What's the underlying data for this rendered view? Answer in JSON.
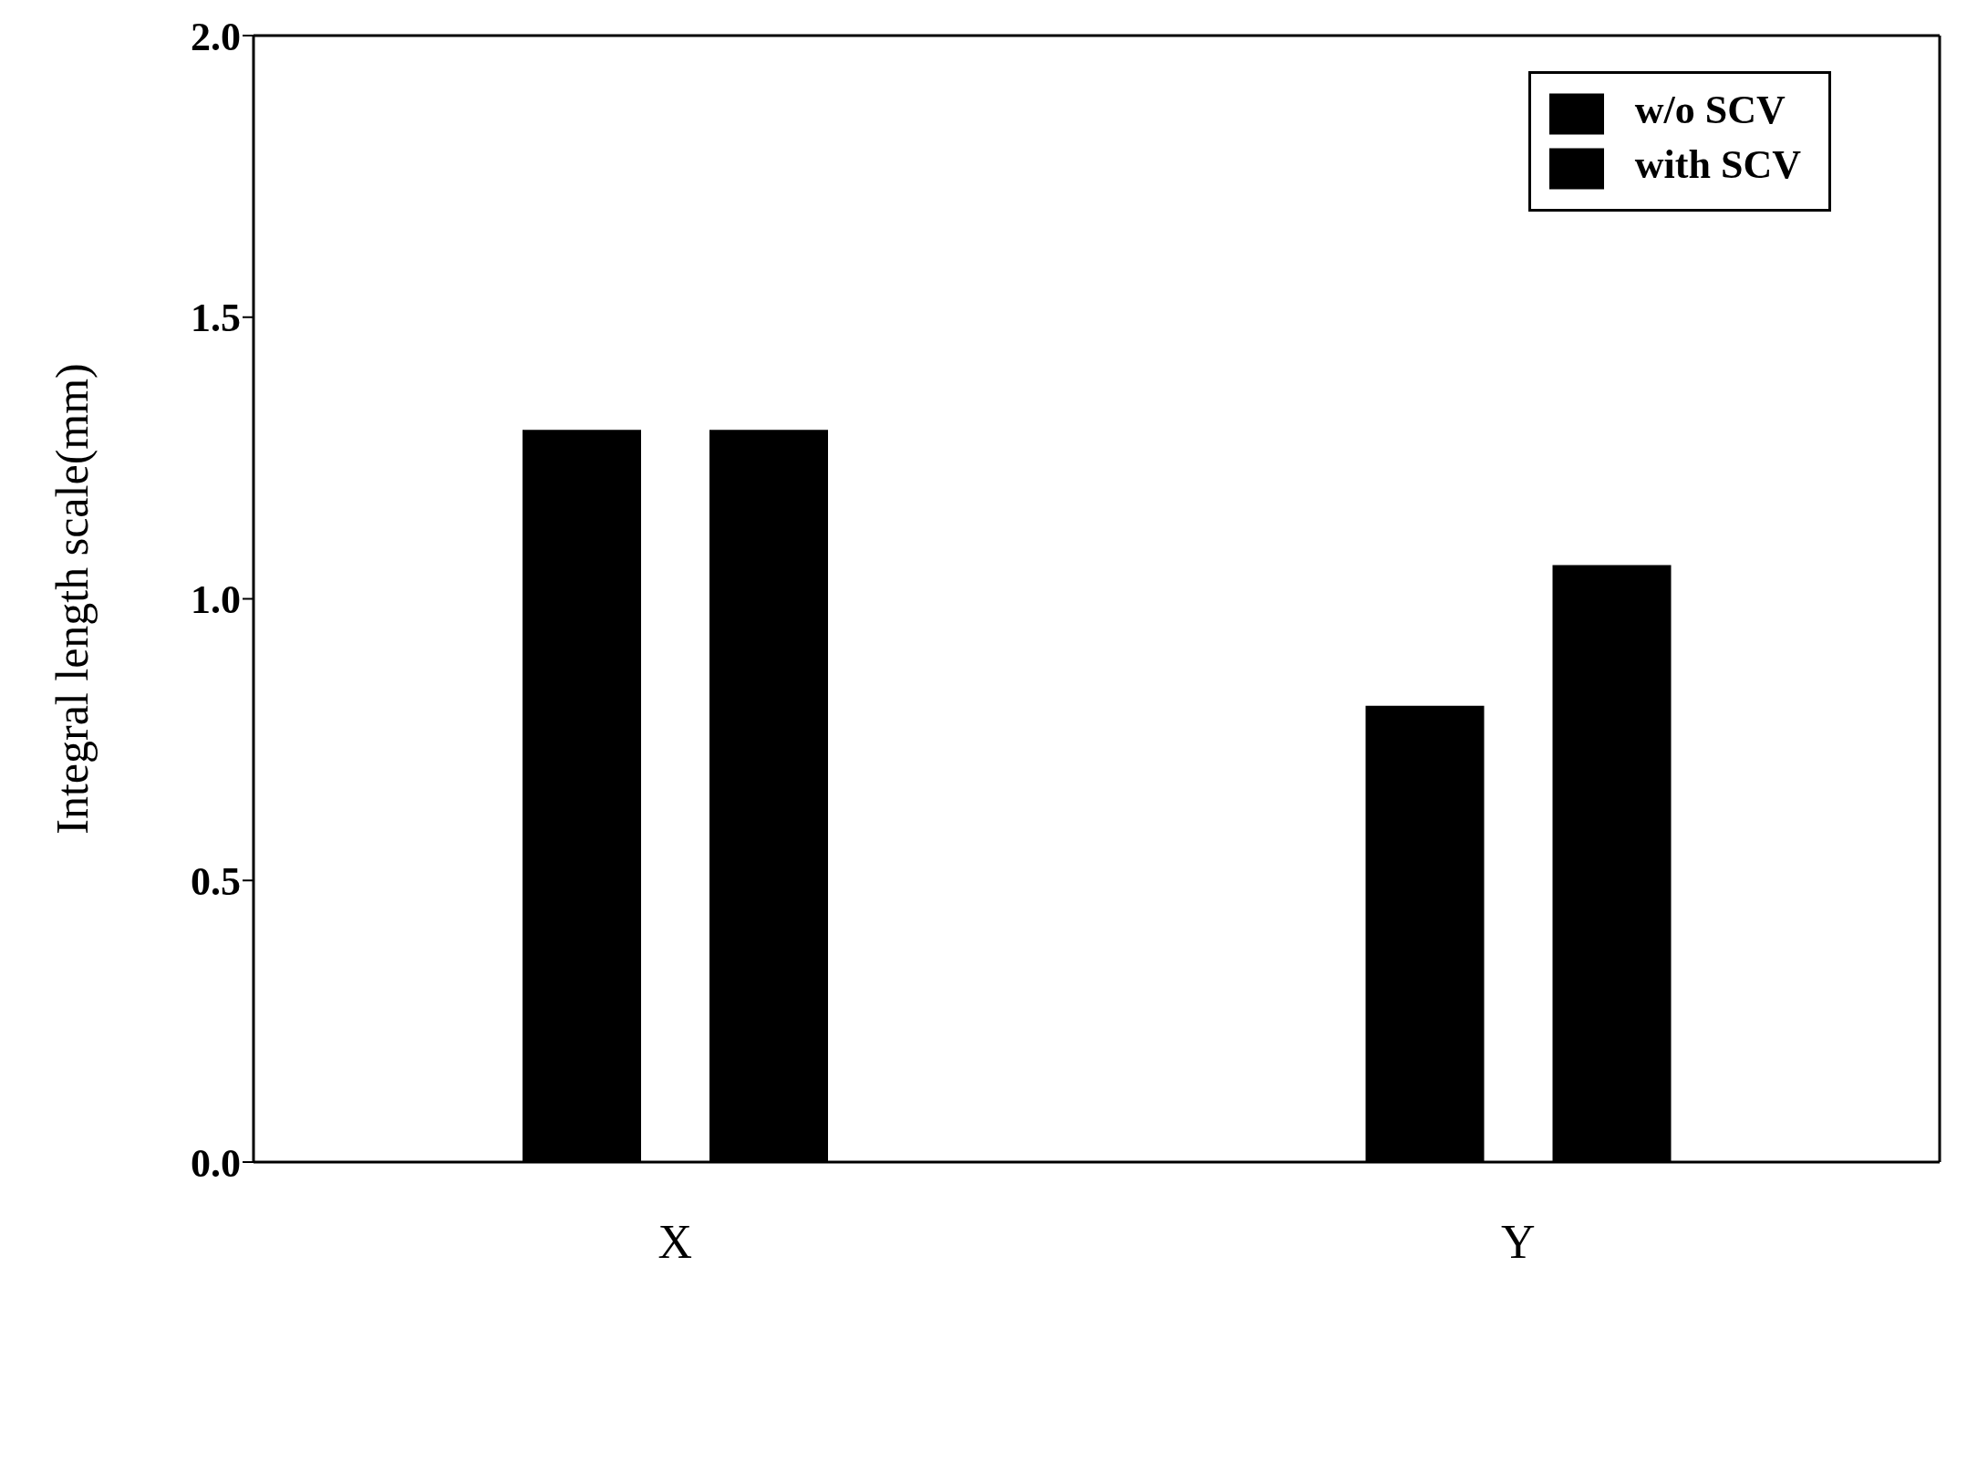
{
  "chart_data": {
    "type": "bar",
    "ylabel": "Integral length scale(mm)",
    "categories": [
      "X",
      "Y"
    ],
    "series": [
      {
        "name": "w/o SCV",
        "color": "#000000",
        "values": [
          1.3,
          0.81
        ]
      },
      {
        "name": "with SCV",
        "color": "#000000",
        "values": [
          1.3,
          1.06
        ]
      }
    ],
    "ylim": [
      0,
      2
    ],
    "yticks": [
      {
        "value": 0,
        "label": "0.0"
      },
      {
        "value": 0.5,
        "label": "0.5"
      },
      {
        "value": 1,
        "label": "1.0"
      },
      {
        "value": 1.5,
        "label": "1.5"
      },
      {
        "value": 2,
        "label": "2.0"
      }
    ],
    "grid": false,
    "legend": "top right"
  }
}
